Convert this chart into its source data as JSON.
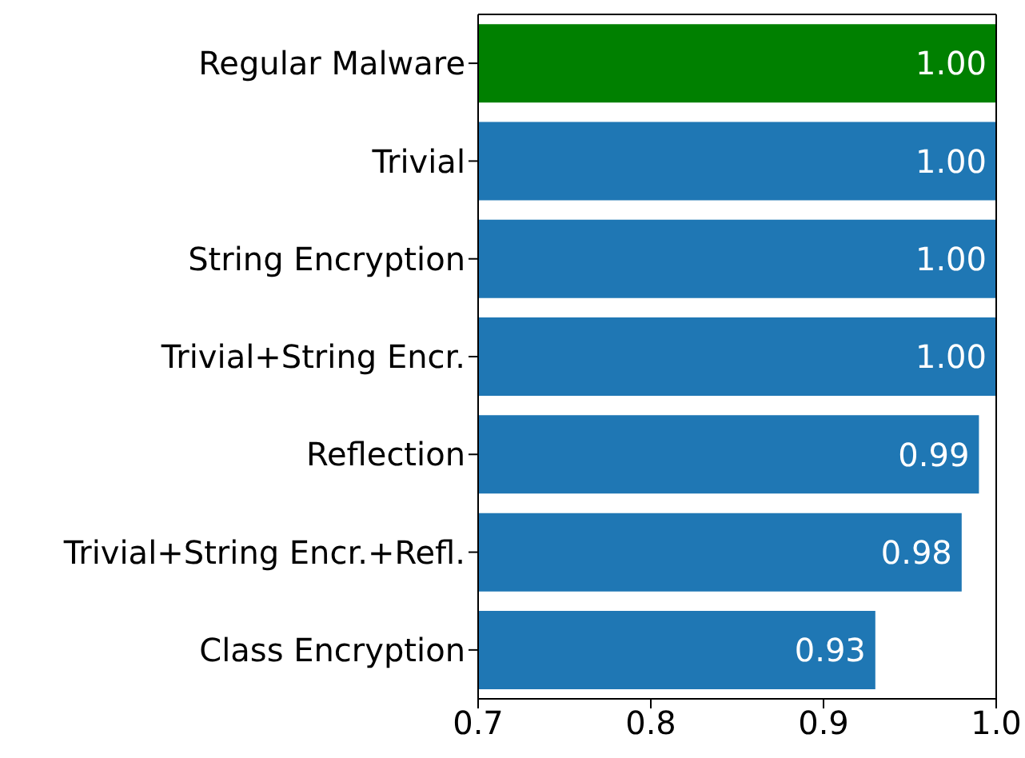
{
  "chart_data": {
    "type": "bar",
    "orientation": "horizontal",
    "categories": [
      "Regular Malware",
      "Trivial",
      "String Encryption",
      "Trivial+String Encr.",
      "Reflection",
      "Trivial+String Encr.+Refl.",
      "Class Encryption"
    ],
    "values": [
      1.0,
      1.0,
      1.0,
      1.0,
      0.99,
      0.98,
      0.93
    ],
    "colors": [
      "#008000",
      "#1f77b4",
      "#1f77b4",
      "#1f77b4",
      "#1f77b4",
      "#1f77b4",
      "#1f77b4"
    ],
    "value_labels": [
      "1.00",
      "1.00",
      "1.00",
      "1.00",
      "0.99",
      "0.98",
      "0.93"
    ],
    "xlim": [
      0.7,
      1.0
    ],
    "xticks": [
      0.7,
      0.8,
      0.9,
      {
        "value": 1,
        "label": "1.0"
      }
    ],
    "grid": false
  }
}
